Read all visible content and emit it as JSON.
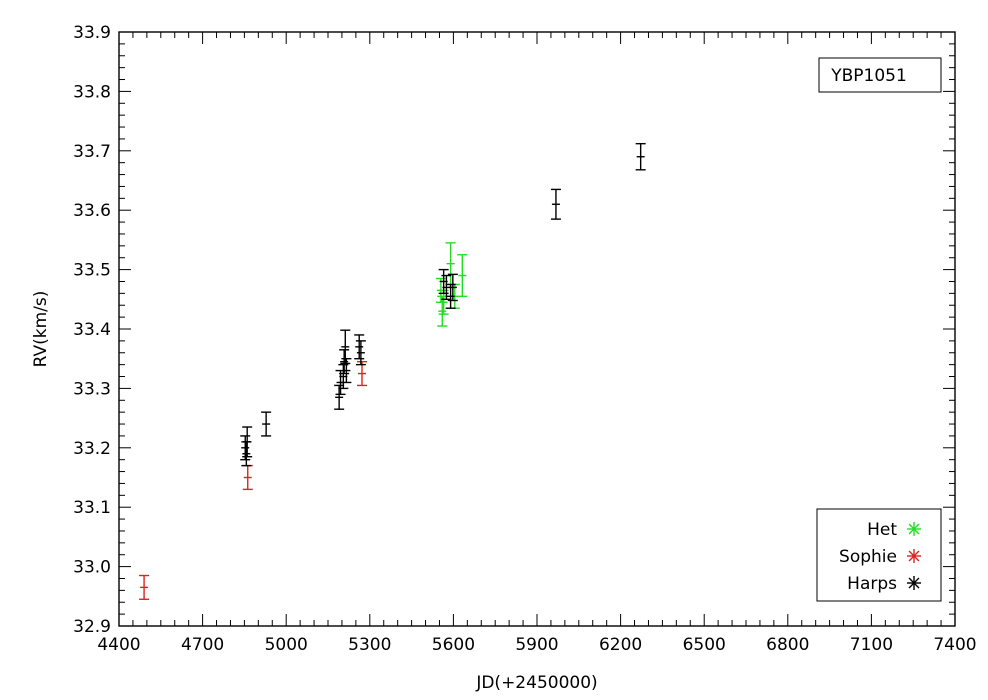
{
  "chart_data": {
    "type": "scatter",
    "title": "",
    "xlabel": "JD(+2450000)",
    "ylabel": "RV(km/s)",
    "xlim": [
      4400,
      7400
    ],
    "ylim": [
      32.9,
      33.9
    ],
    "xticks": [
      4400,
      4700,
      5000,
      5300,
      5600,
      5900,
      6200,
      6500,
      6800,
      7100,
      7400
    ],
    "yticks": [
      32.9,
      33.0,
      33.1,
      33.2,
      33.3,
      33.4,
      33.5,
      33.6,
      33.7,
      33.8,
      33.9
    ],
    "ytick_labels": [
      "32.9",
      "33.0",
      "33.1",
      "33.2",
      "33.3",
      "33.4",
      "33.5",
      "33.6",
      "33.7",
      "33.8",
      "33.9"
    ],
    "annotation": "YBP1051",
    "grid": false,
    "legend_position": "bottom-right",
    "series": [
      {
        "name": "Het",
        "color": "#22dd22",
        "points": [
          {
            "x": 5555,
            "y": 33.465,
            "err": 0.02
          },
          {
            "x": 5560,
            "y": 33.43,
            "err": 0.025
          },
          {
            "x": 5565,
            "y": 33.445,
            "err": 0.02
          },
          {
            "x": 5590,
            "y": 33.51,
            "err": 0.035
          },
          {
            "x": 5605,
            "y": 33.455,
            "err": 0.02
          },
          {
            "x": 5632,
            "y": 33.49,
            "err": 0.035
          }
        ]
      },
      {
        "name": "Sophie",
        "color": "#dd2222",
        "points": [
          {
            "x": 4490,
            "y": 32.965,
            "err": 0.02
          },
          {
            "x": 4862,
            "y": 33.15,
            "err": 0.02
          },
          {
            "x": 5272,
            "y": 33.325,
            "err": 0.02
          }
        ]
      },
      {
        "name": "Harps",
        "color": "#000000",
        "points": [
          {
            "x": 4853,
            "y": 33.2,
            "err": 0.02
          },
          {
            "x": 4857,
            "y": 33.19,
            "err": 0.02
          },
          {
            "x": 4860,
            "y": 33.21,
            "err": 0.025
          },
          {
            "x": 4928,
            "y": 33.24,
            "err": 0.02
          },
          {
            "x": 5190,
            "y": 33.285,
            "err": 0.02
          },
          {
            "x": 5195,
            "y": 33.31,
            "err": 0.02
          },
          {
            "x": 5205,
            "y": 33.32,
            "err": 0.02
          },
          {
            "x": 5208,
            "y": 33.345,
            "err": 0.02
          },
          {
            "x": 5212,
            "y": 33.37,
            "err": 0.028
          },
          {
            "x": 5216,
            "y": 33.33,
            "err": 0.02
          },
          {
            "x": 5262,
            "y": 33.37,
            "err": 0.02
          },
          {
            "x": 5268,
            "y": 33.36,
            "err": 0.02
          },
          {
            "x": 5565,
            "y": 33.48,
            "err": 0.02
          },
          {
            "x": 5575,
            "y": 33.47,
            "err": 0.02
          },
          {
            "x": 5590,
            "y": 33.455,
            "err": 0.02
          },
          {
            "x": 5598,
            "y": 33.47,
            "err": 0.022
          },
          {
            "x": 5968,
            "y": 33.61,
            "err": 0.025
          },
          {
            "x": 6272,
            "y": 33.69,
            "err": 0.022
          }
        ]
      }
    ]
  }
}
